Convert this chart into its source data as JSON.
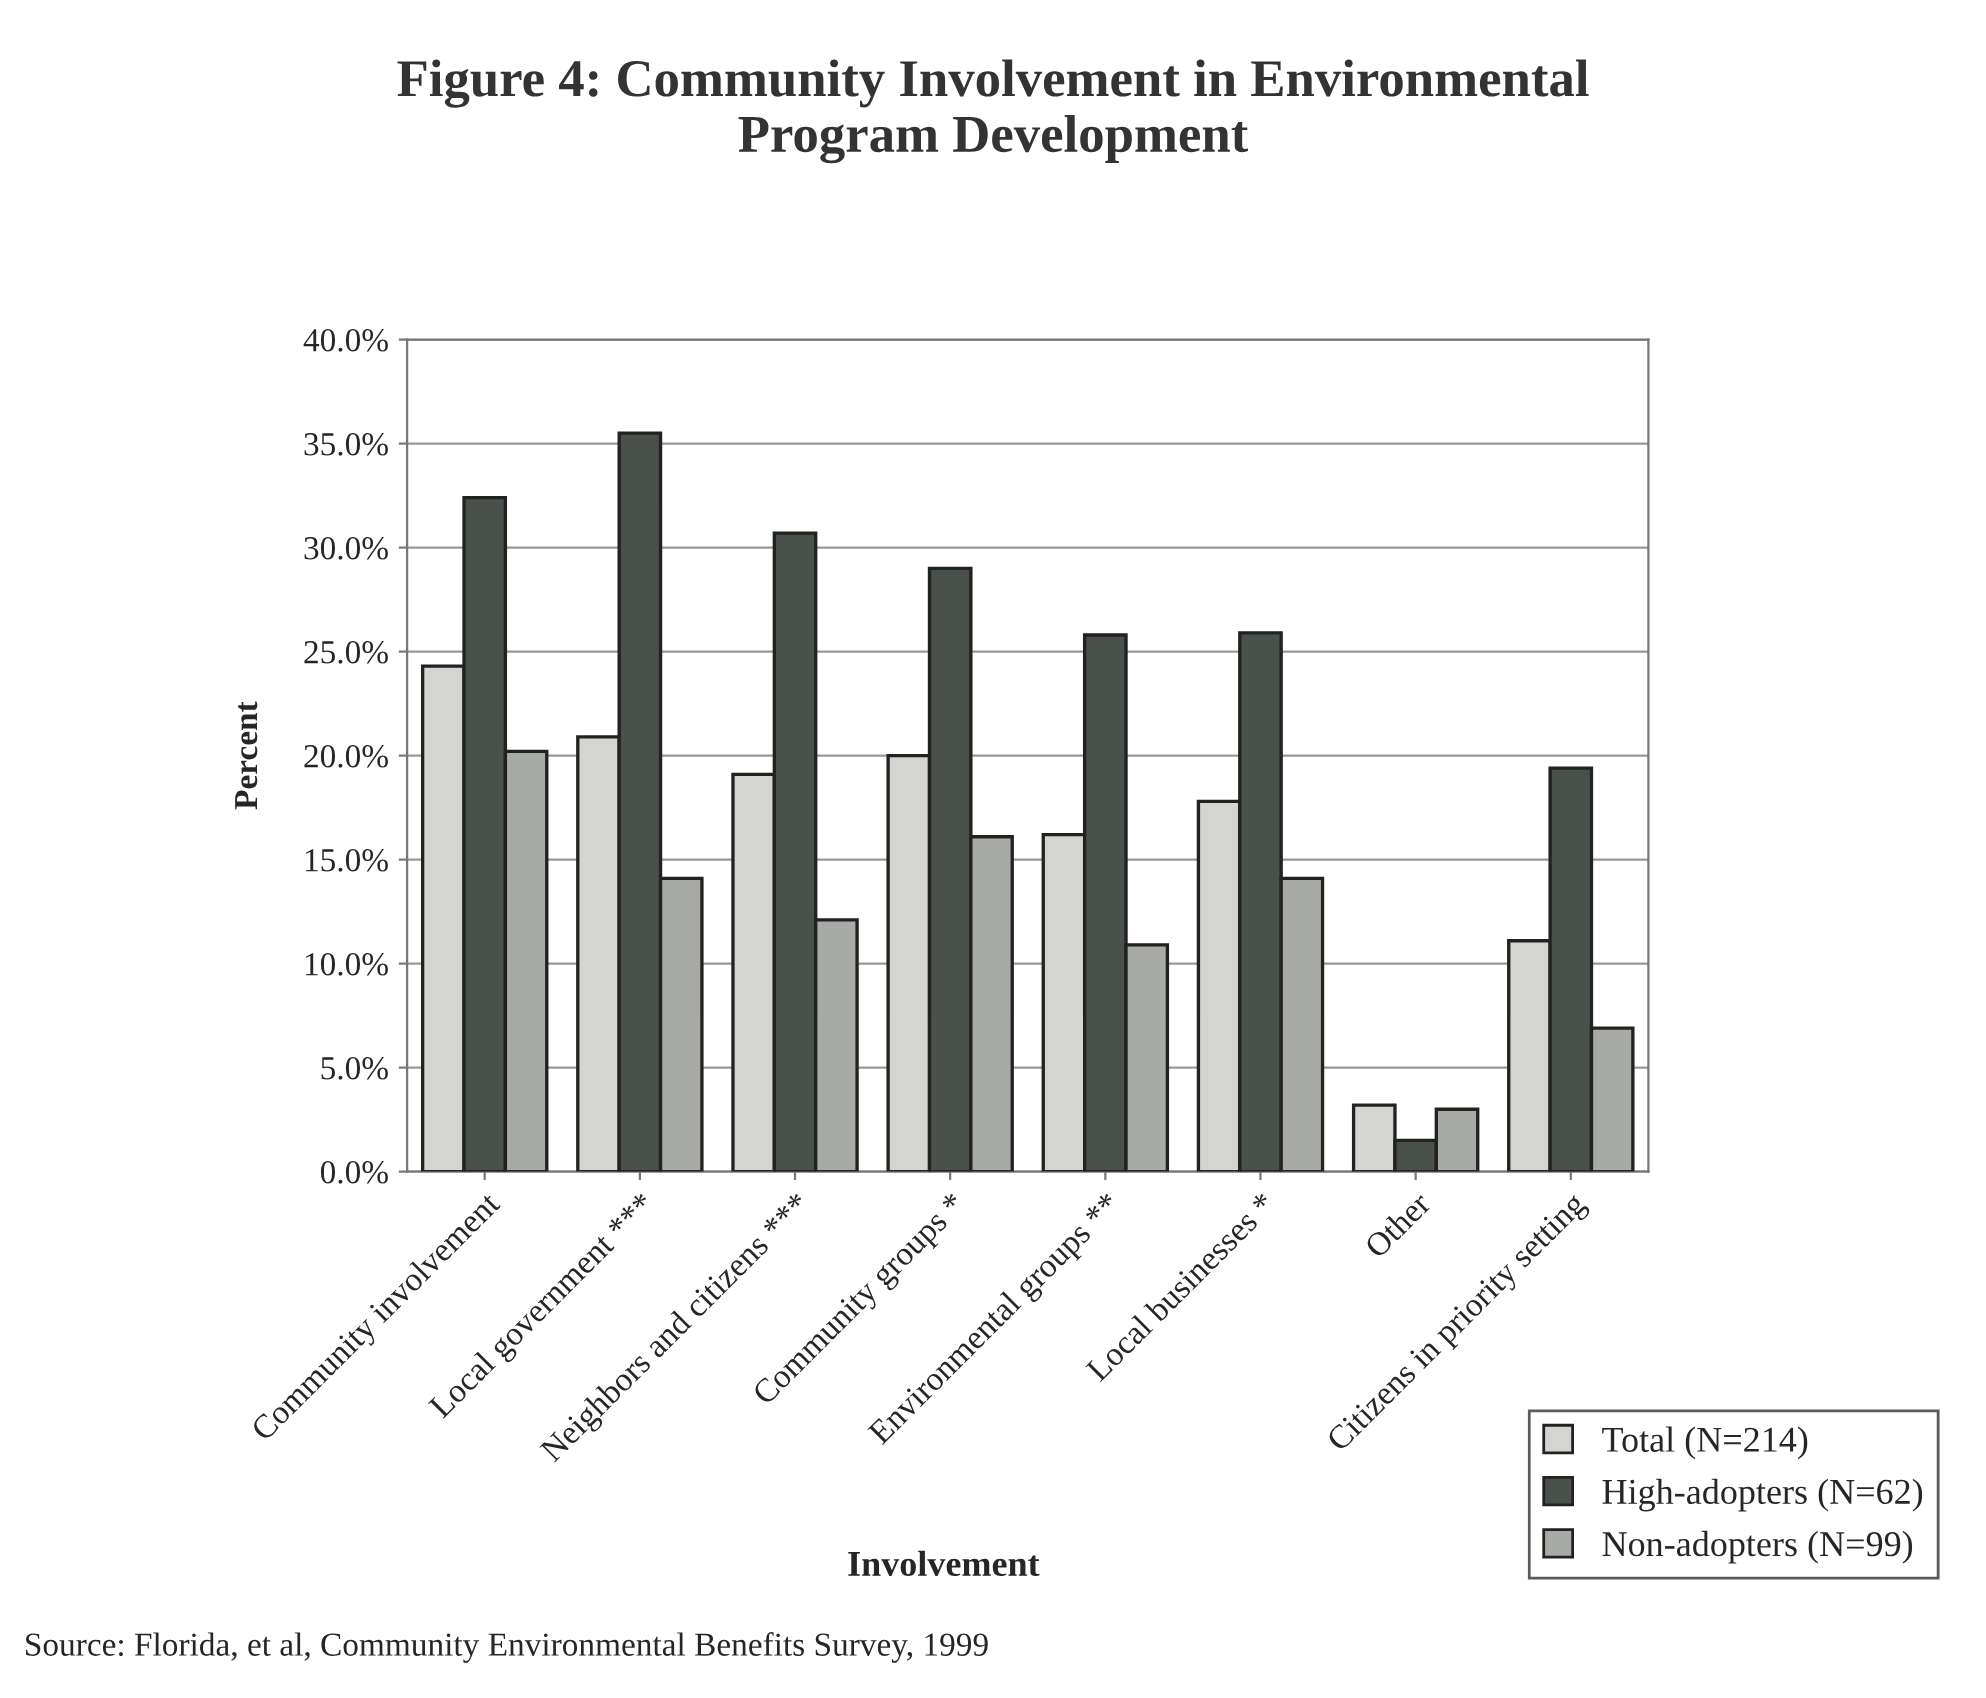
{
  "chart_data": {
    "type": "bar",
    "title": "Figure 4: Community Involvement in Environmental\nProgram Development",
    "xlabel": "Involvement",
    "ylabel": "Percent",
    "categories": [
      "Community involvement",
      "Local government ***",
      "Neighbors and citizens ***",
      "Community groups *",
      "Environmental groups **",
      "Local businesses *",
      "Other",
      "Citizens in priority setting"
    ],
    "series": [
      {
        "name": "Total (N=214)",
        "color": "#d4d4d0",
        "values": [
          24.3,
          20.9,
          19.1,
          20.0,
          16.2,
          17.8,
          3.2,
          11.1
        ]
      },
      {
        "name": "High-adopters (N=62)",
        "color": "#4a504a",
        "values": [
          32.4,
          35.5,
          30.7,
          29.0,
          25.8,
          25.9,
          1.5,
          19.4
        ]
      },
      {
        "name": "Non-adopters (N=99)",
        "color": "#a8aaa6",
        "values": [
          20.2,
          14.1,
          12.1,
          16.1,
          10.9,
          14.1,
          3.0,
          6.9
        ]
      }
    ],
    "ylim": [
      0,
      40
    ],
    "yticks": [
      {
        "value": 0,
        "label": "0.0%"
      },
      {
        "value": 5,
        "label": "5.0%"
      },
      {
        "value": 10,
        "label": "10.0%"
      },
      {
        "value": 15,
        "label": "15.0%"
      },
      {
        "value": 20,
        "label": "20.0%"
      },
      {
        "value": 25,
        "label": "25.0%"
      },
      {
        "value": 30,
        "label": "30.0%"
      },
      {
        "value": 35,
        "label": "35.0%"
      },
      {
        "value": 40,
        "label": "40.0%"
      }
    ],
    "grid": "y",
    "legend": "bottom right",
    "annotations": [
      "Source: Florida, et al, Community Environmental Benefits Survey, 1999"
    ]
  }
}
